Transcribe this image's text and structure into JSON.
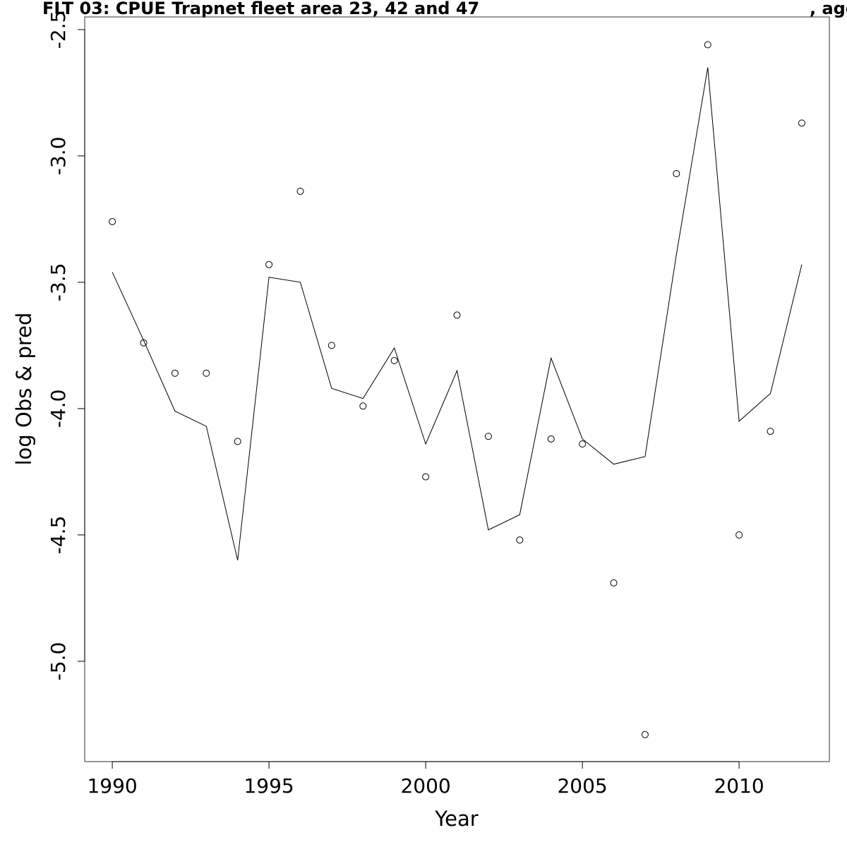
{
  "chart_data": {
    "type": "scatter",
    "title": "FLT 03: CPUE Trapnet fleet area 23, 42 and 47",
    "title_suffix": ", age",
    "x_label": "Year",
    "y_label": "log Obs & pred",
    "x": [
      1990,
      1991,
      1992,
      1993,
      1994,
      1995,
      1996,
      1997,
      1998,
      1999,
      2000,
      2001,
      2002,
      2003,
      2004,
      2005,
      2006,
      2007,
      2008,
      2009,
      2010,
      2011,
      2012
    ],
    "series": [
      {
        "marker": "circle",
        "color": "#000000",
        "values": [
          -3.26,
          -3.74,
          -3.86,
          -3.86,
          -4.13,
          -3.43,
          -3.14,
          -3.75,
          -3.99,
          -3.81,
          -4.27,
          -3.63,
          -4.11,
          -4.52,
          -4.12,
          -4.14,
          -4.69,
          -5.29,
          -3.07,
          -2.56,
          -4.5,
          -4.09,
          -2.87
        ]
      },
      {
        "marker": "line",
        "color": "#000000",
        "values": [
          -3.46,
          -3.73,
          -4.01,
          -4.07,
          -4.6,
          -3.48,
          -3.5,
          -3.92,
          -3.96,
          -3.76,
          -4.14,
          -3.85,
          -4.48,
          -4.42,
          -3.8,
          -4.12,
          -4.22,
          -4.19,
          -3.39,
          -2.65,
          -4.05,
          -3.94,
          -3.43
        ]
      }
    ],
    "xlim": [
      1989.12,
      2012.88
    ],
    "ylim": [
      -5.397,
      -2.45
    ],
    "xticks": [
      1990,
      1995,
      2000,
      2005,
      2010
    ],
    "yticks": [
      {
        "value": -5,
        "label": "-5.0"
      },
      -4.5,
      {
        "value": -4,
        "label": "-4.0"
      },
      -3.5,
      {
        "value": -3,
        "label": "-3.0"
      },
      -2.5
    ]
  }
}
